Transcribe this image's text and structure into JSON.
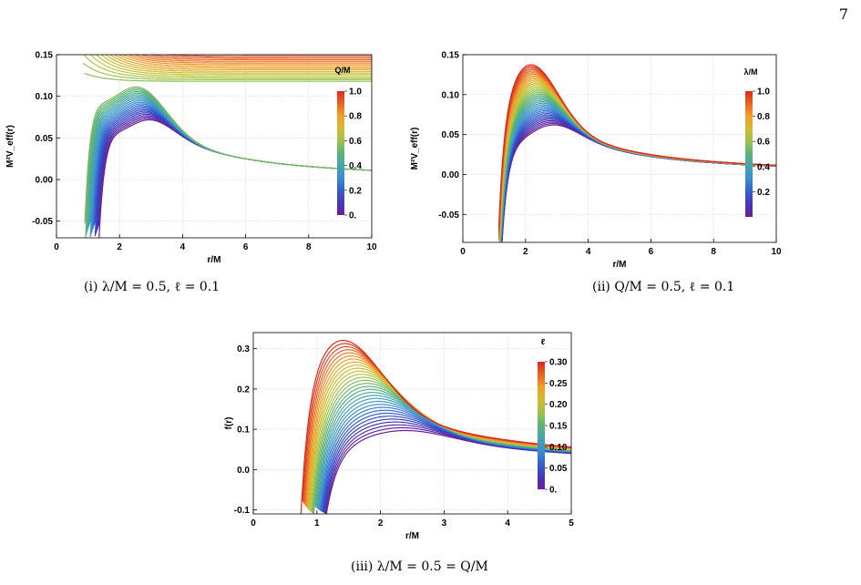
{
  "page": {
    "number": "7"
  },
  "chart_data": [
    {
      "type": "line",
      "id": "p1",
      "caption": "(i) λ/M = 0.5, ℓ = 0.1",
      "xlabel": "r/M",
      "ylabel": "M²V_eff(r)",
      "xlim": [
        0,
        10
      ],
      "ylim": [
        -0.07,
        0.15
      ],
      "xticks": [
        "0",
        "2",
        "4",
        "6",
        "8",
        "10"
      ],
      "yticks": [
        "-0.05",
        "0.00",
        "0.05",
        "0.10",
        "0.15"
      ],
      "ytick_values": [
        -0.05,
        0.0,
        0.05,
        0.1,
        0.15
      ],
      "xtick_values": [
        0,
        2,
        4,
        6,
        8,
        10
      ],
      "grid": true,
      "colorbar": {
        "title": "Q/M",
        "ticks": [
          "0.",
          "0.2",
          "0.4",
          "0.6",
          "0.8",
          "1.0"
        ],
        "range": [
          0,
          1
        ]
      },
      "series_count": 41,
      "parameter_range": [
        0,
        1
      ],
      "peak_curve": {
        "lowest_param_peak": [
          2.4,
          0.072
        ],
        "x_tail_end": [
          10,
          0.011
        ]
      }
    },
    {
      "type": "line",
      "id": "p2",
      "caption": "(ii) Q/M = 0.5, ℓ = 0.1",
      "xlabel": "r/M",
      "ylabel": "M²V_eff(r)",
      "xlim": [
        0,
        10
      ],
      "ylim": [
        -0.085,
        0.15
      ],
      "xticks": [
        "0",
        "2",
        "4",
        "6",
        "8",
        "10"
      ],
      "yticks": [
        "-0.05",
        "0.00",
        "0.05",
        "0.10",
        "0.15"
      ],
      "ytick_values": [
        -0.05,
        0.0,
        0.05,
        0.1,
        0.15
      ],
      "xtick_values": [
        0,
        2,
        4,
        6,
        8,
        10
      ],
      "grid": true,
      "colorbar": {
        "title": "λ/M",
        "ticks": [
          "0.2",
          "0.4",
          "0.6",
          "0.8",
          "1.0"
        ],
        "range": [
          0,
          1
        ]
      },
      "series_count": 41,
      "parameter_range": [
        0,
        1
      ],
      "peaks": {
        "low_param": [
          2.3,
          0.063
        ],
        "high_param": [
          1.85,
          0.143
        ]
      }
    },
    {
      "type": "line",
      "id": "p3",
      "caption": "(iii) λ/M = 0.5 = Q/M",
      "xlabel": "r/M",
      "ylabel": "f(r)",
      "xlim": [
        0,
        5
      ],
      "ylim": [
        -0.11,
        0.34
      ],
      "xticks": [
        "0",
        "1",
        "2",
        "3",
        "4",
        "5"
      ],
      "yticks": [
        "-0.1",
        "0.0",
        "0.1",
        "0.2",
        "0.3"
      ],
      "ytick_values": [
        -0.1,
        0.0,
        0.1,
        0.2,
        0.3
      ],
      "xtick_values": [
        0,
        1,
        2,
        3,
        4,
        5
      ],
      "grid": true,
      "colorbar": {
        "title": "ℓ",
        "ticks": [
          "0.",
          "0.05",
          "0.10",
          "0.15",
          "0.20",
          "0.25",
          "0.30"
        ],
        "range": [
          0,
          0.3
        ]
      },
      "series_count": 31,
      "parameter_range": [
        0,
        0.3
      ],
      "peaks": {
        "low_param": [
          1.95,
          0.1
        ],
        "high_param": [
          1.2,
          0.333
        ]
      }
    }
  ]
}
